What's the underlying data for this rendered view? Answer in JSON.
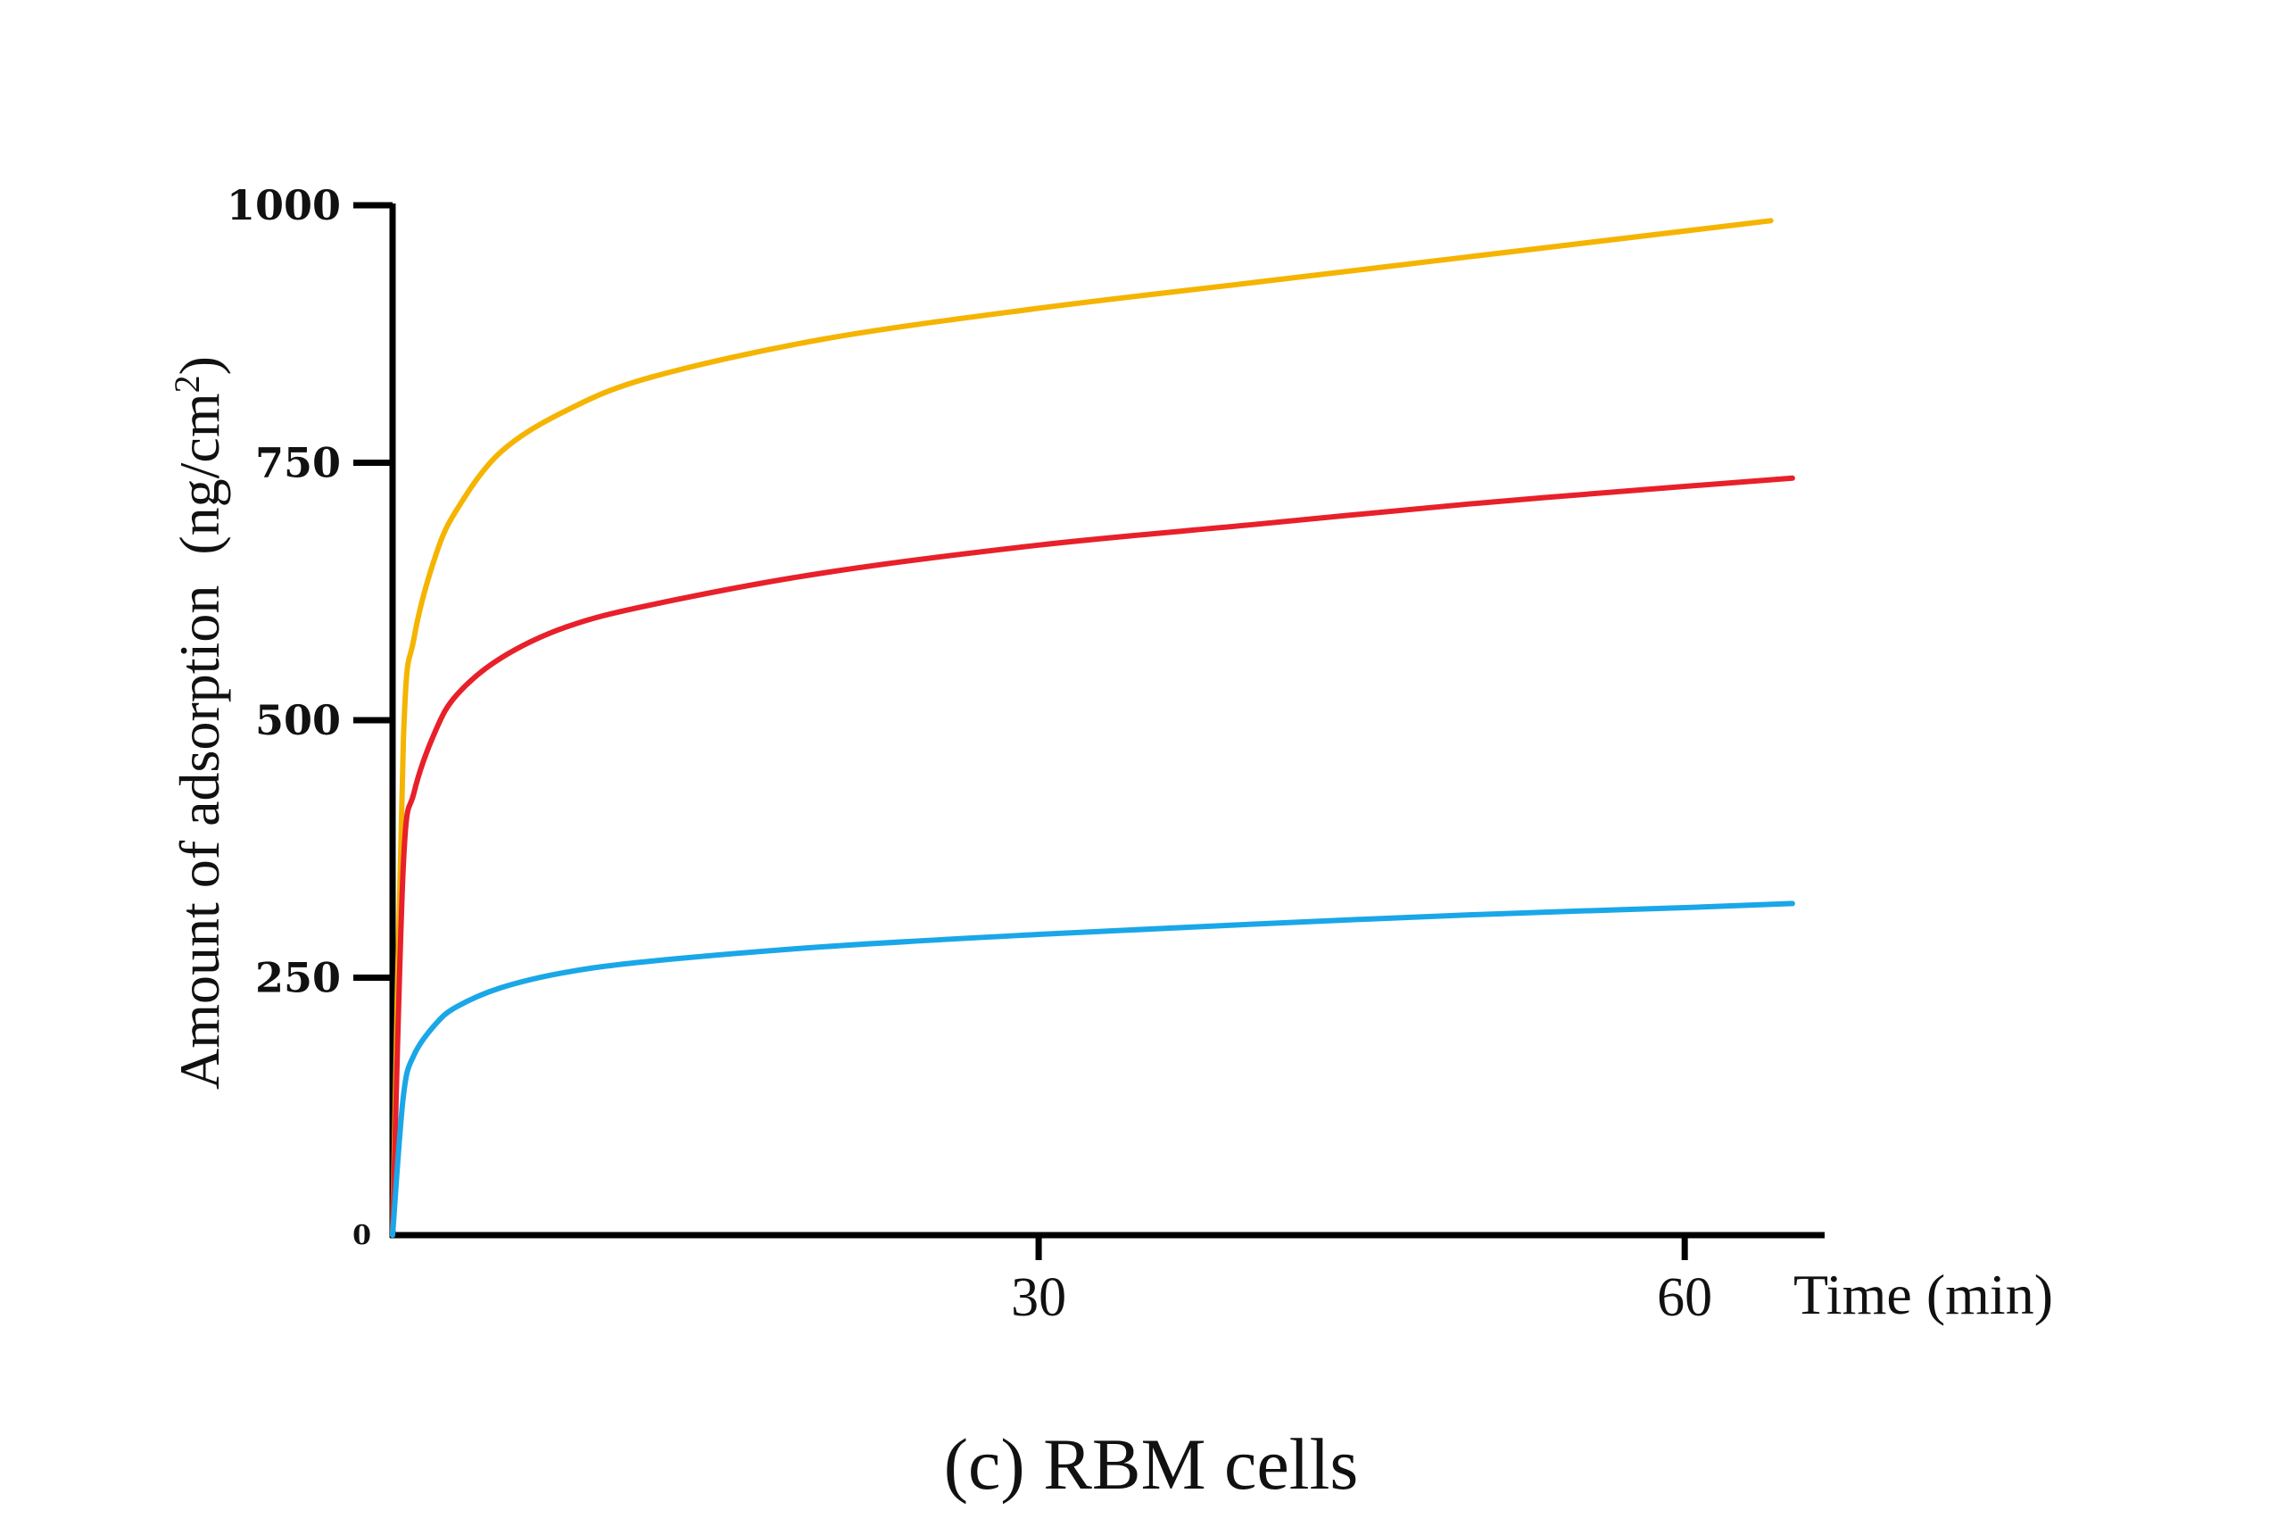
{
  "chart_data": {
    "type": "line",
    "title": "",
    "caption": "(c) RBM cells",
    "xlabel": "Time (min)",
    "ylabel": "Amount of adsorption",
    "ylabel_unit": "(ng/cm",
    "ylabel_unit_sup": "2",
    "ylabel_unit_close": ")",
    "xlim": [
      0,
      66
    ],
    "ylim": [
      0,
      1000
    ],
    "x_ticks": [
      30,
      60
    ],
    "x_tick_labels": [
      "30",
      "60"
    ],
    "y_ticks": [
      0,
      250,
      500,
      750,
      1000
    ],
    "y_tick_labels": [
      "0",
      "250",
      "500",
      "750",
      "1000"
    ],
    "grid": false,
    "legend": "none",
    "series": [
      {
        "color": "#F5B400",
        "x": [
          0,
          0.5,
          1,
          2,
          3,
          5,
          8,
          12,
          20,
          30,
          40,
          50,
          60,
          64
        ],
        "y": [
          0,
          480,
          580,
          660,
          705,
          760,
          800,
          833,
          870,
          900,
          925,
          950,
          975,
          985
        ]
      },
      {
        "color": "#E8202A",
        "x": [
          0,
          0.5,
          1,
          2,
          3,
          5,
          8,
          12,
          20,
          30,
          40,
          50,
          60,
          65
        ],
        "y": [
          0,
          360,
          430,
          490,
          525,
          560,
          590,
          612,
          643,
          670,
          690,
          710,
          727,
          735
        ]
      },
      {
        "color": "#1AA7E8",
        "x": [
          0,
          0.5,
          1,
          2,
          3,
          5,
          8,
          12,
          20,
          30,
          40,
          50,
          60,
          65
        ],
        "y": [
          0,
          135,
          175,
          205,
          222,
          240,
          255,
          266,
          280,
          292,
          302,
          311,
          318,
          322
        ]
      }
    ]
  }
}
